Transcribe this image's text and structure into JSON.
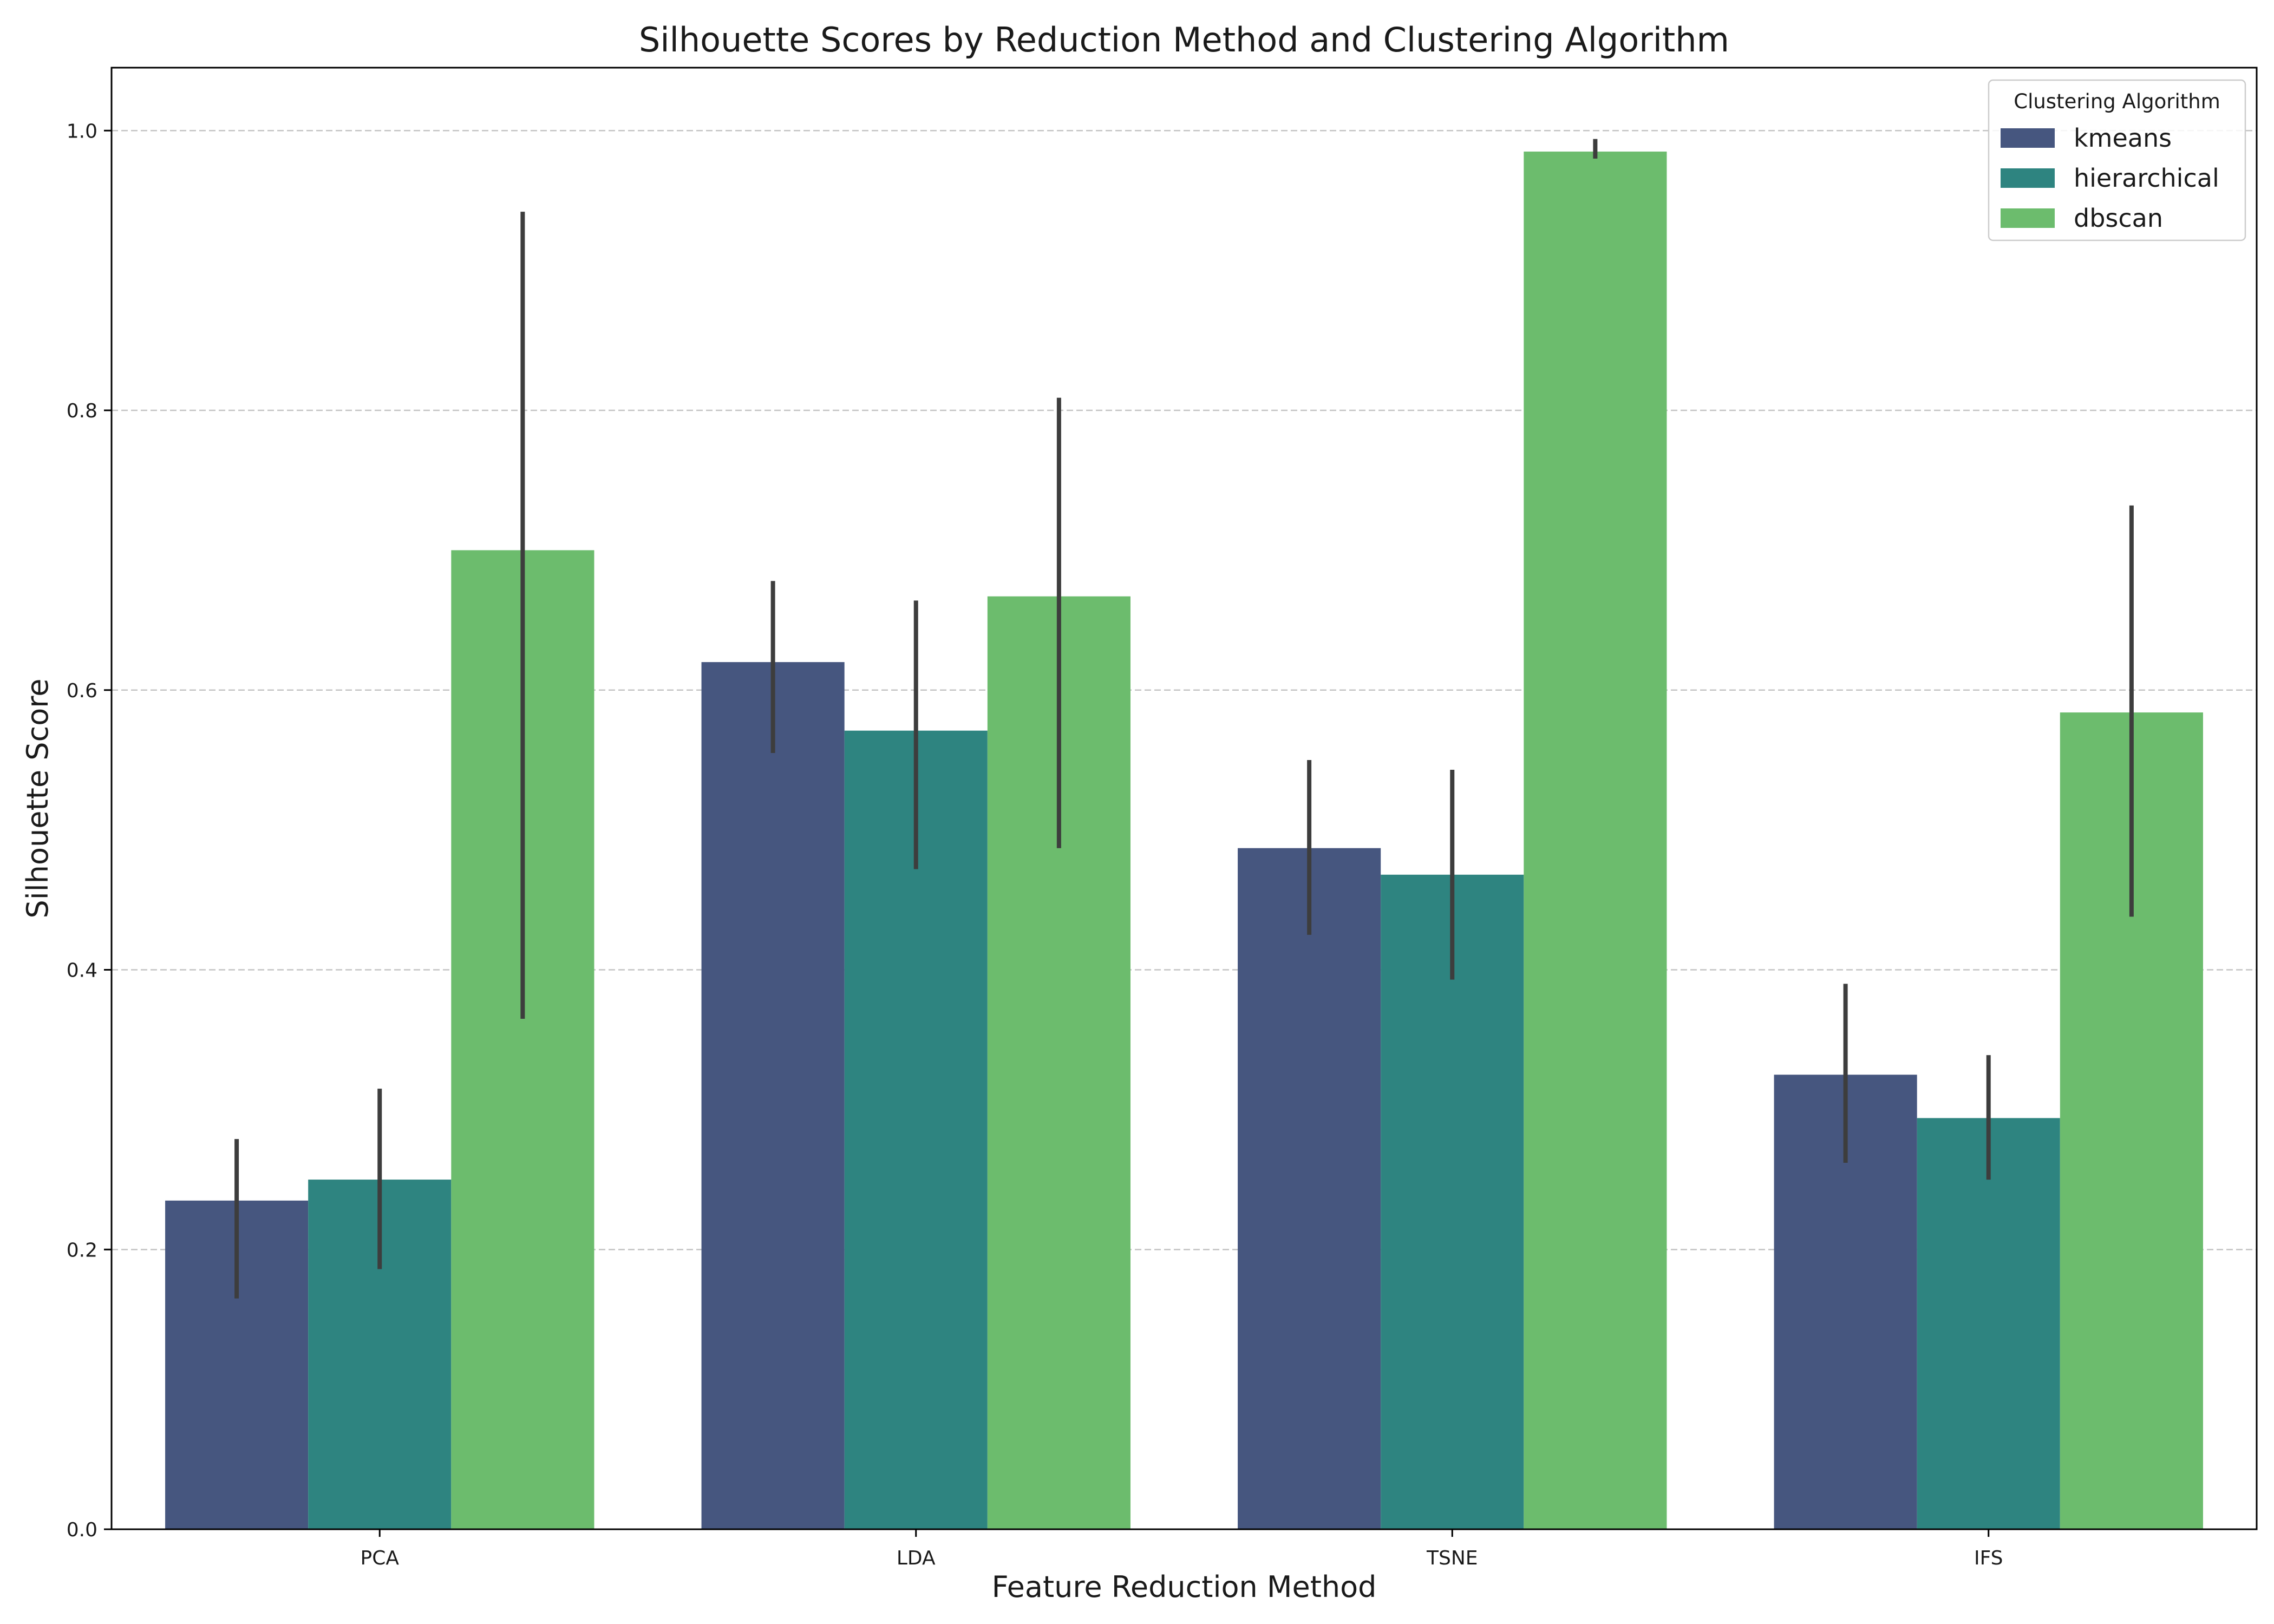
{
  "chart_data": {
    "type": "bar",
    "title": "Silhouette Scores by Reduction Method and Clustering Algorithm",
    "xlabel": "Feature Reduction Method",
    "ylabel": "Silhouette Score",
    "categories": [
      "PCA",
      "LDA",
      "TSNE",
      "IFS"
    ],
    "ylim": [
      0,
      1.045
    ],
    "yticks": [
      0.0,
      0.2,
      0.4,
      0.6,
      0.8,
      1.0
    ],
    "ytick_labels": [
      "0.0",
      "0.2",
      "0.4",
      "0.6",
      "0.8",
      "1.0"
    ],
    "grid": "y-dashed",
    "legend": {
      "title": "Clustering Algorithm",
      "placement": "top-right"
    },
    "series": [
      {
        "name": "kmeans",
        "color": "#46567f",
        "values": [
          0.235,
          0.62,
          0.487,
          0.325
        ],
        "error_low": [
          0.165,
          0.555,
          0.425,
          0.262
        ],
        "error_high": [
          0.279,
          0.678,
          0.55,
          0.39
        ]
      },
      {
        "name": "hierarchical",
        "color": "#2e8480",
        "values": [
          0.25,
          0.571,
          0.468,
          0.294
        ],
        "error_low": [
          0.186,
          0.472,
          0.393,
          0.25
        ],
        "error_high": [
          0.315,
          0.664,
          0.543,
          0.339
        ]
      },
      {
        "name": "dbscan",
        "color": "#6cbc6d",
        "values": [
          0.7,
          0.667,
          0.985,
          0.584
        ],
        "error_low": [
          0.365,
          0.487,
          0.98,
          0.438
        ],
        "error_high": [
          0.942,
          0.809,
          0.994,
          0.732
        ]
      }
    ]
  }
}
